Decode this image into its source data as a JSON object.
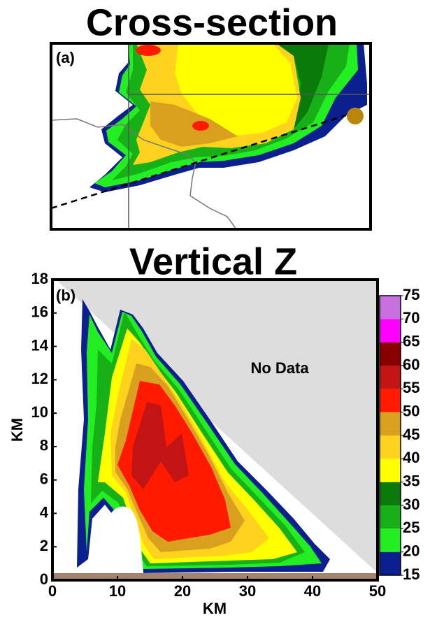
{
  "chart_data": [
    {
      "type": "map",
      "title": "Cross-section",
      "panel_label": "(a)"
    },
    {
      "type": "contour",
      "title": "Vertical Z",
      "panel_label": "(b)",
      "xlabel": "KM",
      "ylabel": "KM",
      "annotation": "No Data",
      "xlim": [
        0,
        50
      ],
      "xticks": [
        0,
        10,
        20,
        30,
        40,
        50
      ],
      "ylim": [
        0,
        18
      ],
      "yticks": [
        0,
        2,
        4,
        6,
        8,
        10,
        12,
        14,
        16,
        18
      ],
      "colorbar": {
        "levels": [
          15,
          20,
          25,
          30,
          35,
          40,
          45,
          50,
          55,
          60,
          65,
          70,
          75
        ],
        "colors": [
          "#0b1f8f",
          "#22ee22",
          "#17b017",
          "#0a7a0a",
          "#ffff00",
          "#ffd21e",
          "#d9a020",
          "#ff1a00",
          "#c21414",
          "#8a0000",
          "#ff00ff",
          "#c870e0"
        ]
      }
    }
  ]
}
